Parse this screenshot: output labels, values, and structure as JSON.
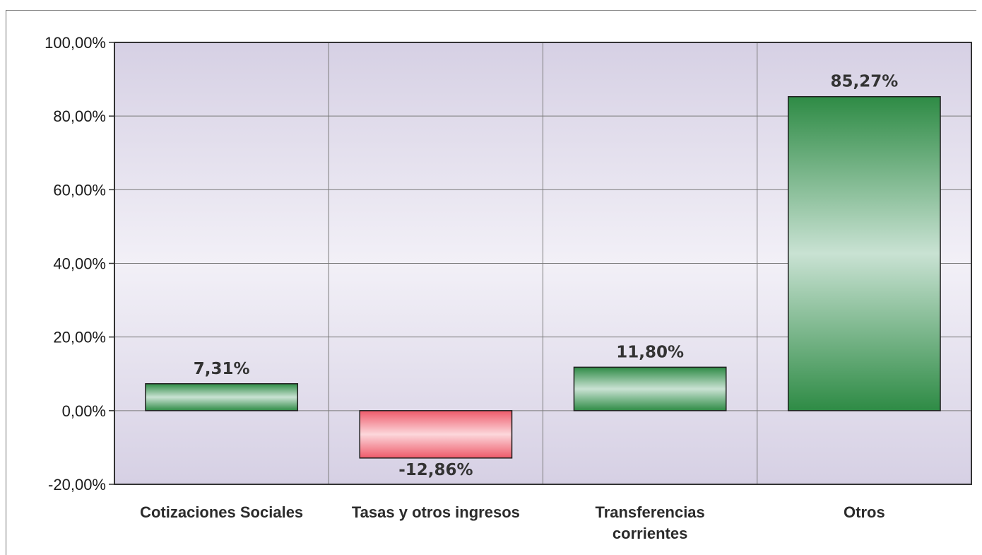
{
  "chart_data": {
    "type": "bar",
    "categories": [
      [
        "Cotizaciones Sociales"
      ],
      [
        "Tasas y otros ingresos"
      ],
      [
        "Transferencias",
        "corrientes"
      ],
      [
        "Otros"
      ]
    ],
    "values": [
      7.31,
      -12.86,
      11.8,
      85.27
    ],
    "data_labels": [
      "7,31%",
      "-12,86%",
      "11,80%",
      "85,27%"
    ],
    "title": "",
    "xlabel": "",
    "ylabel": "",
    "ylim": [
      -20,
      100
    ],
    "yticks": [
      100,
      80,
      60,
      40,
      20,
      0,
      -20
    ],
    "ytick_labels": [
      "100,00%",
      "80,00%",
      "60,00%",
      "40,00%",
      "20,00%",
      "0,00%",
      "-20,00%"
    ],
    "grid": true,
    "colors": {
      "positive_dark": "#2e8b45",
      "positive_light": "#c9e2d3",
      "negative_dark": "#ee5a6a",
      "negative_light": "#fcd7db",
      "plot_top": "#d6d0e4",
      "plot_mid": "#f2f0f7",
      "plot_bottom": "#d6d0e4"
    }
  }
}
